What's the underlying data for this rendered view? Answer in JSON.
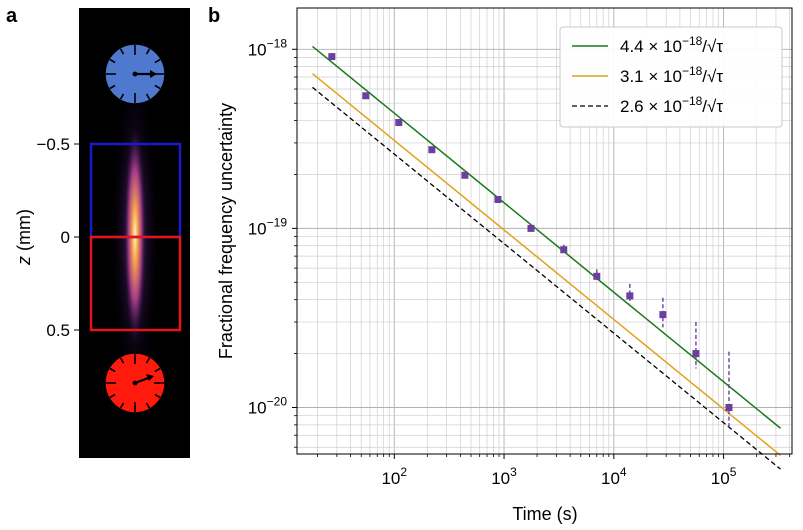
{
  "panel_a": {
    "label": "a",
    "axis_label_var": "z",
    "axis_label_unit": " (mm)",
    "ticks": [
      {
        "value": -0.5,
        "label": "−0.5"
      },
      {
        "value": 0,
        "label": "0"
      },
      {
        "value": 0.5,
        "label": "0.5"
      }
    ],
    "colors": {
      "top_clock": "#4f78cf",
      "bottom_clock": "#ff1a0d",
      "upper_box": "#1a1acc",
      "lower_box": "#e61414",
      "background": "#000000"
    },
    "icons": [
      "clock-icon-blue",
      "clock-icon-red"
    ]
  },
  "chart_data": {
    "type": "scatter",
    "panel_label": "b",
    "xlabel": "Time (s)",
    "ylabel": "Fractional frequency uncertainty",
    "x_scale": "log",
    "y_scale": "log",
    "xlim": [
      13,
      420000
    ],
    "ylim": [
      5.5e-21,
      1.7e-18
    ],
    "grid": true,
    "legend_placement": "top-right",
    "x_ticks": [
      {
        "value": 100,
        "base": "10",
        "exp": "2"
      },
      {
        "value": 1000,
        "base": "10",
        "exp": "3"
      },
      {
        "value": 10000,
        "base": "10",
        "exp": "4"
      },
      {
        "value": 100000,
        "base": "10",
        "exp": "5"
      }
    ],
    "y_ticks": [
      {
        "value": 1e-18,
        "base": "10",
        "exp": "−18"
      },
      {
        "value": 1e-19,
        "base": "10",
        "exp": "−19"
      },
      {
        "value": 1e-20,
        "base": "10",
        "exp": "−20"
      }
    ],
    "series": [
      {
        "kind": "points",
        "color": "#6a3fa0",
        "points": [
          {
            "x": 27,
            "y": 9.1e-19,
            "err_lo": 0,
            "err_hi": 0
          },
          {
            "x": 55,
            "y": 5.5e-19,
            "err_lo": 0,
            "err_hi": 0
          },
          {
            "x": 110,
            "y": 3.9e-19,
            "err_lo": 0,
            "err_hi": 0
          },
          {
            "x": 220,
            "y": 2.75e-19,
            "err_lo": 0,
            "err_hi": 0
          },
          {
            "x": 440,
            "y": 1.98e-19,
            "err_lo": 0,
            "err_hi": 0
          },
          {
            "x": 880,
            "y": 1.45e-19,
            "err_lo": 0,
            "err_hi": 0
          },
          {
            "x": 1760,
            "y": 1e-19,
            "err_lo": 0,
            "err_hi": 0
          },
          {
            "x": 3500,
            "y": 7.6e-20,
            "err_lo": 7.3e-20,
            "err_hi": 8.1e-20
          },
          {
            "x": 7000,
            "y": 5.4e-20,
            "err_lo": 5.1e-20,
            "err_hi": 5.9e-20
          },
          {
            "x": 14000,
            "y": 4.2e-20,
            "err_lo": 3.8e-20,
            "err_hi": 4.9e-20
          },
          {
            "x": 28000,
            "y": 3.3e-20,
            "err_lo": 2.8e-20,
            "err_hi": 4.1e-20
          },
          {
            "x": 56000,
            "y": 2e-20,
            "err_lo": 1.65e-20,
            "err_hi": 3e-20
          },
          {
            "x": 112000,
            "y": 1e-20,
            "err_lo": 7.6e-21,
            "err_hi": 2.05e-20
          }
        ]
      },
      {
        "kind": "line",
        "coef": 4.4e-18,
        "color": "#1a7a1a",
        "dash": false,
        "label_coef": "4.4",
        "label_base": " × 10",
        "label_exp": "−18",
        "label_tail": "/√τ"
      },
      {
        "kind": "line",
        "coef": 3.1e-18,
        "color": "#e0a21a",
        "dash": false,
        "label_coef": "3.1",
        "label_base": " × 10",
        "label_exp": "−18",
        "label_tail": "/√τ"
      },
      {
        "kind": "line",
        "coef": 2.6e-18,
        "color": "#000000",
        "dash": true,
        "label_coef": "2.6",
        "label_base": " × 10",
        "label_exp": "−18",
        "label_tail": "/√τ"
      }
    ],
    "line_x_range": [
      18,
      330000
    ]
  }
}
